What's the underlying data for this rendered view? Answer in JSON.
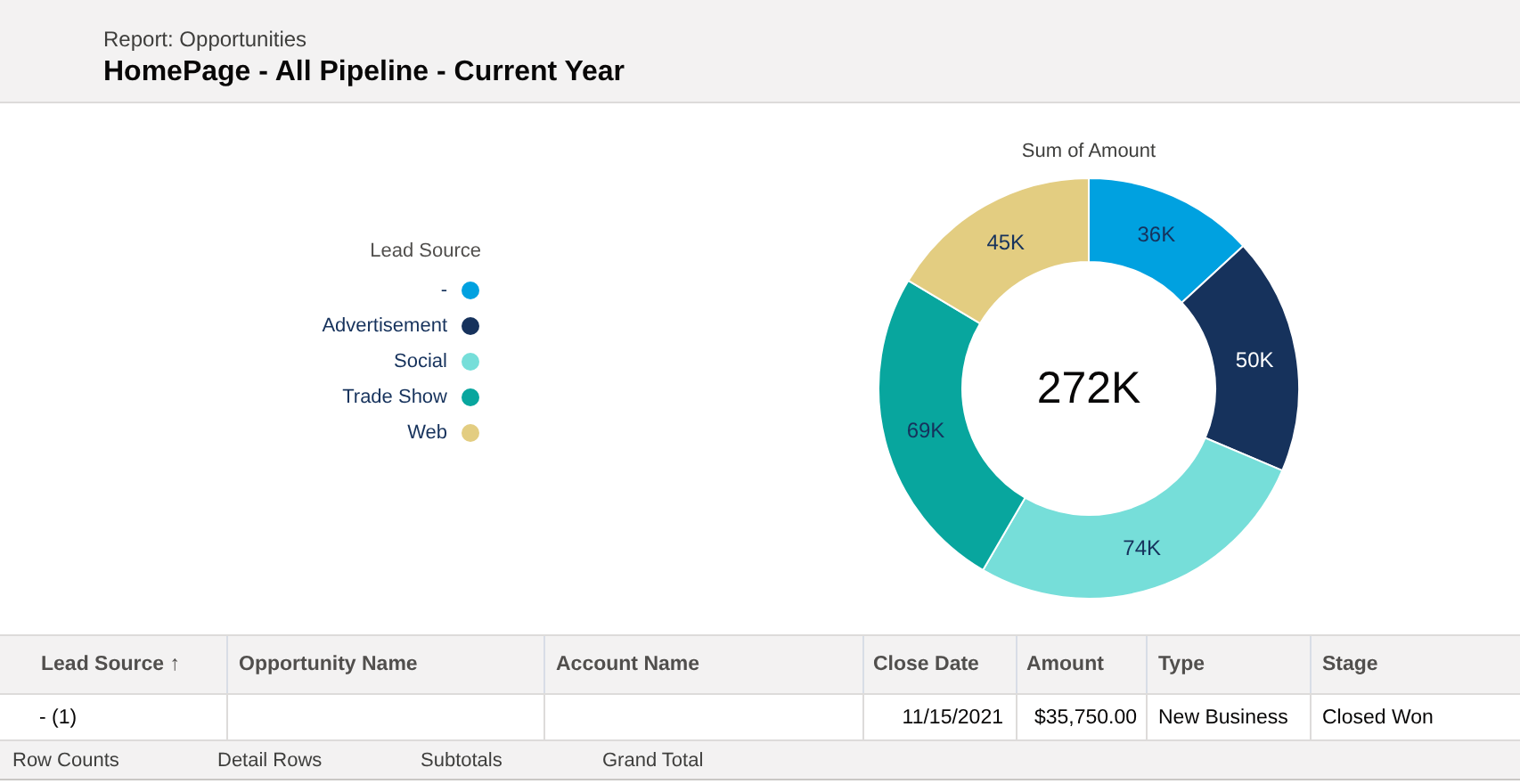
{
  "chart_data": {
    "type": "donut",
    "title": "HomePage - All Pipeline - Current Year",
    "subtitle": "Report: Opportunities",
    "categories": [
      "-",
      "Advertisement",
      "Social",
      "Trade Show",
      "Web"
    ],
    "values": [
      36,
      50,
      74,
      69,
      45
    ],
    "colors": [
      "#00a1e0",
      "#16325c",
      "#76ded9",
      "#08a69e",
      "#e3cd81"
    ],
    "value_labels": [
      "36K",
      "50K",
      "74K",
      "69K",
      "45K"
    ],
    "legend_title": "Lead Source",
    "legend": "left",
    "annotations": [
      "Sum of Amount",
      "272K",
      "Lead Source ↑",
      "Opportunity Name",
      "Account Name",
      "Close Date",
      "Amount",
      "Type",
      "Stage",
      "- (1)",
      "11/15/2021",
      "$35,750.00",
      "New Business",
      "Closed Won",
      "Row Counts",
      "Detail Rows",
      "Subtotals",
      "Grand Total"
    ]
  }
}
